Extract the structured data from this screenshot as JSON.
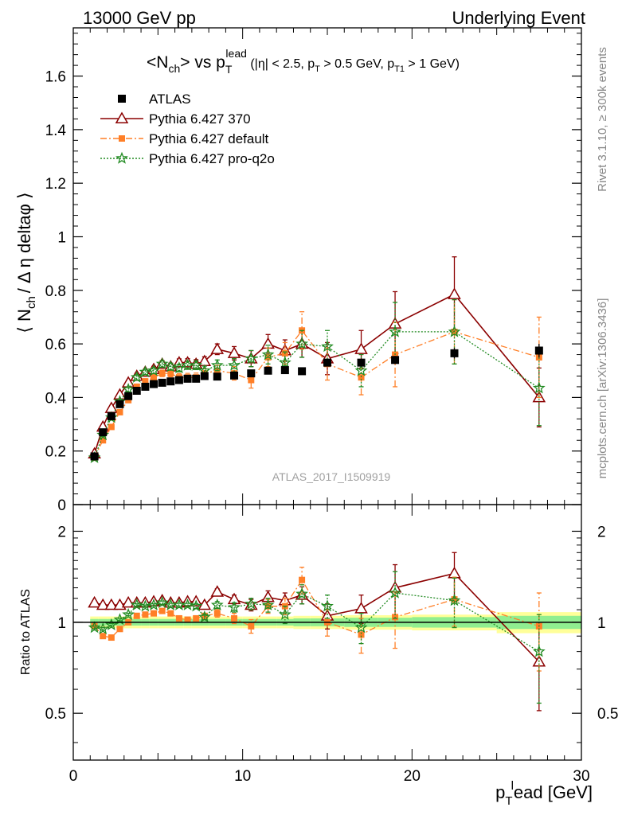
{
  "header": {
    "left": "13000 GeV pp",
    "right": "Underlying Event"
  },
  "side_labels": {
    "rivet": "Rivet 3.1.10, ≥ 300k events",
    "mcplots": "mcplots.cern.ch [arXiv:1306.3436]"
  },
  "watermark": "ATLAS_2017_I1509919",
  "chart_data": [
    {
      "type": "scatter",
      "panel": "main",
      "title": "<N_ch> vs p_T^lead (|η| < 2.5, p_T > 0.5 GeV, p_T1 > 1 GeV)",
      "title_parts": {
        "main": "<N",
        "sub1": "ch",
        "mid": "> vs p",
        "sub2": "T",
        "sup2": "lead",
        "cut_a": " (|η| < 2.5, p",
        "cut_sub_a": "T",
        "cut_b": " > 0.5 GeV, p",
        "cut_sub_b": "T1",
        "cut_c": " > 1 GeV)"
      },
      "ylabel": "⟨ N_ch / Δη deltaφ ⟩",
      "ylabel_parts": {
        "open": "⟨ N",
        "sub": "ch",
        "rest": "/ Δ η deltaφ ⟩"
      },
      "xlim": [
        0,
        30
      ],
      "ylim": [
        0,
        1.78
      ],
      "yticks": [
        0,
        0.2,
        0.4,
        0.6,
        0.8,
        1,
        1.2,
        1.4,
        1.6
      ],
      "ytick_labels": [
        "0",
        "0.2",
        "0.4",
        "0.6",
        "0.8",
        "1",
        "1.2",
        "1.4",
        "1.6"
      ],
      "legend_position": "top-left",
      "series": [
        {
          "name": "ATLAS",
          "color": "#000000",
          "marker": "square",
          "x": [
            1.25,
            1.75,
            2.25,
            2.75,
            3.25,
            3.75,
            4.25,
            4.75,
            5.25,
            5.75,
            6.25,
            6.75,
            7.25,
            7.75,
            8.5,
            9.5,
            10.5,
            11.5,
            12.5,
            13.5,
            15.0,
            17.0,
            19.0,
            22.5,
            27.5
          ],
          "y": [
            0.18,
            0.27,
            0.33,
            0.375,
            0.405,
            0.425,
            0.44,
            0.45,
            0.455,
            0.46,
            0.465,
            0.47,
            0.47,
            0.48,
            0.478,
            0.482,
            0.49,
            0.5,
            0.502,
            0.498,
            0.53,
            0.53,
            0.54,
            0.565,
            0.575
          ],
          "yerr": [
            0.005,
            0.005,
            0.005,
            0.005,
            0.005,
            0.005,
            0.005,
            0.005,
            0.005,
            0.005,
            0.005,
            0.005,
            0.005,
            0.005,
            0.005,
            0.005,
            0.006,
            0.006,
            0.007,
            0.008,
            0.01,
            0.012,
            0.015,
            0.02,
            0.025
          ]
        },
        {
          "name": "Pythia 6.427 370",
          "color": "#8b0000",
          "marker": "triangle-open",
          "line": "solid",
          "x": [
            1.25,
            1.75,
            2.25,
            2.75,
            3.25,
            3.75,
            4.25,
            4.75,
            5.25,
            5.75,
            6.25,
            6.75,
            7.25,
            7.75,
            8.5,
            9.5,
            10.5,
            11.5,
            12.5,
            13.5,
            15.0,
            17.0,
            19.0,
            22.5,
            27.5
          ],
          "y": [
            0.19,
            0.29,
            0.36,
            0.41,
            0.455,
            0.48,
            0.495,
            0.505,
            0.525,
            0.515,
            0.53,
            0.53,
            0.525,
            0.535,
            0.58,
            0.565,
            0.545,
            0.6,
            0.575,
            0.6,
            0.545,
            0.58,
            0.675,
            0.785,
            0.4
          ],
          "yerr": [
            0.005,
            0.006,
            0.007,
            0.008,
            0.009,
            0.01,
            0.01,
            0.011,
            0.012,
            0.013,
            0.014,
            0.015,
            0.016,
            0.017,
            0.02,
            0.025,
            0.03,
            0.035,
            0.04,
            0.05,
            0.06,
            0.07,
            0.12,
            0.14,
            0.11
          ]
        },
        {
          "name": "Pythia 6.427 default",
          "color": "#ff7f27",
          "marker": "square",
          "line": "dashdot",
          "x": [
            1.25,
            1.75,
            2.25,
            2.75,
            3.25,
            3.75,
            4.25,
            4.75,
            5.25,
            5.75,
            6.25,
            6.75,
            7.25,
            7.75,
            8.5,
            9.5,
            10.5,
            11.5,
            12.5,
            13.5,
            15.0,
            17.0,
            19.0,
            22.5,
            27.5
          ],
          "y": [
            0.175,
            0.24,
            0.29,
            0.345,
            0.39,
            0.44,
            0.46,
            0.475,
            0.49,
            0.49,
            0.475,
            0.475,
            0.475,
            0.49,
            0.5,
            0.49,
            0.465,
            0.55,
            0.565,
            0.65,
            0.525,
            0.475,
            0.56,
            0.645,
            0.55
          ],
          "yerr": [
            0.005,
            0.006,
            0.007,
            0.008,
            0.009,
            0.01,
            0.01,
            0.011,
            0.012,
            0.013,
            0.014,
            0.015,
            0.016,
            0.017,
            0.02,
            0.025,
            0.03,
            0.035,
            0.04,
            0.07,
            0.06,
            0.065,
            0.12,
            0.12,
            0.15
          ]
        },
        {
          "name": "Pythia 6.427 pro-q2o",
          "color": "#228b22",
          "marker": "star",
          "line": "dotted",
          "x": [
            1.25,
            1.75,
            2.25,
            2.75,
            3.25,
            3.75,
            4.25,
            4.75,
            5.25,
            5.75,
            6.25,
            6.75,
            7.25,
            7.75,
            8.5,
            9.5,
            10.5,
            11.5,
            12.5,
            13.5,
            15.0,
            17.0,
            19.0,
            22.5,
            27.5
          ],
          "y": [
            0.175,
            0.26,
            0.325,
            0.385,
            0.43,
            0.475,
            0.495,
            0.5,
            0.525,
            0.515,
            0.51,
            0.52,
            0.52,
            0.5,
            0.52,
            0.52,
            0.545,
            0.56,
            0.53,
            0.6,
            0.59,
            0.5,
            0.645,
            0.645,
            0.435
          ],
          "yerr": [
            0.005,
            0.006,
            0.007,
            0.008,
            0.009,
            0.01,
            0.01,
            0.011,
            0.012,
            0.013,
            0.014,
            0.015,
            0.016,
            0.017,
            0.02,
            0.025,
            0.03,
            0.035,
            0.04,
            0.05,
            0.06,
            0.06,
            0.11,
            0.12,
            0.14
          ]
        }
      ]
    },
    {
      "type": "scatter",
      "panel": "ratio",
      "ylabel": "Ratio to ATLAS",
      "xlabel": "p_T^lead [GeV]",
      "xlabel_parts": {
        "p": "p",
        "sub": "T",
        "sup": "l",
        "rest": "ead [GeV]"
      },
      "xlim": [
        0,
        30
      ],
      "xticks": [
        0,
        10,
        20,
        30
      ],
      "xtick_labels": [
        "0",
        "10",
        "20",
        "30"
      ],
      "ylim": [
        0.35,
        2.45
      ],
      "yticks": [
        0.5,
        1,
        2
      ],
      "ytick_labels": [
        "0.5",
        "1",
        "2"
      ],
      "yscale": "log",
      "reference_line": 1,
      "bands": {
        "edges": [
          1.0,
          1.5,
          2.0,
          2.5,
          3.0,
          3.5,
          4.0,
          4.5,
          5.0,
          5.5,
          6.0,
          6.5,
          7.0,
          7.5,
          8.0,
          9.0,
          10.0,
          11.0,
          12.0,
          13.0,
          14.0,
          16.0,
          18.0,
          20.0,
          25.0,
          30.0
        ],
        "inner": [
          0.025,
          0.025,
          0.025,
          0.025,
          0.025,
          0.025,
          0.025,
          0.025,
          0.025,
          0.025,
          0.025,
          0.025,
          0.025,
          0.025,
          0.025,
          0.025,
          0.025,
          0.025,
          0.025,
          0.03,
          0.03,
          0.035,
          0.035,
          0.04,
          0.05
        ],
        "outer": [
          0.045,
          0.045,
          0.045,
          0.045,
          0.045,
          0.045,
          0.045,
          0.045,
          0.045,
          0.045,
          0.045,
          0.045,
          0.045,
          0.045,
          0.045,
          0.045,
          0.045,
          0.045,
          0.045,
          0.05,
          0.05,
          0.055,
          0.055,
          0.06,
          0.08
        ],
        "inner_color": "#90ee90",
        "outer_color": "#ffff99"
      },
      "series": [
        {
          "name": "Pythia 6.427 370",
          "color": "#8b0000",
          "marker": "triangle-open",
          "line": "solid",
          "x": [
            1.25,
            1.75,
            2.25,
            2.75,
            3.25,
            3.75,
            4.25,
            4.75,
            5.25,
            5.75,
            6.25,
            6.75,
            7.25,
            7.75,
            8.5,
            9.5,
            10.5,
            11.5,
            12.5,
            13.5,
            15.0,
            17.0,
            19.0,
            22.5,
            27.5
          ],
          "y": [
            1.16,
            1.14,
            1.14,
            1.14,
            1.16,
            1.16,
            1.16,
            1.17,
            1.18,
            1.16,
            1.16,
            1.17,
            1.17,
            1.14,
            1.26,
            1.19,
            1.14,
            1.21,
            1.18,
            1.23,
            1.05,
            1.11,
            1.3,
            1.45,
            0.74
          ],
          "yerr": [
            0.01,
            0.01,
            0.01,
            0.01,
            0.01,
            0.01,
            0.01,
            0.01,
            0.015,
            0.015,
            0.015,
            0.015,
            0.02,
            0.02,
            0.03,
            0.04,
            0.05,
            0.06,
            0.07,
            0.08,
            0.1,
            0.12,
            0.25,
            0.25,
            0.23
          ]
        },
        {
          "name": "Pythia 6.427 default",
          "color": "#ff7f27",
          "marker": "square",
          "line": "dashdot",
          "x": [
            1.25,
            1.75,
            2.25,
            2.75,
            3.25,
            3.75,
            4.25,
            4.75,
            5.25,
            5.75,
            6.25,
            6.75,
            7.25,
            7.75,
            8.5,
            9.5,
            10.5,
            11.5,
            12.5,
            13.5,
            15.0,
            17.0,
            19.0,
            22.5,
            27.5
          ],
          "y": [
            0.97,
            0.9,
            0.89,
            0.95,
            1.0,
            1.05,
            1.06,
            1.07,
            1.09,
            1.07,
            1.03,
            1.02,
            1.03,
            1.05,
            1.07,
            1.03,
            0.97,
            1.13,
            1.13,
            1.38,
            1.0,
            0.91,
            1.04,
            1.19,
            0.97
          ],
          "yerr": [
            0.01,
            0.01,
            0.01,
            0.01,
            0.01,
            0.01,
            0.01,
            0.01,
            0.015,
            0.015,
            0.015,
            0.015,
            0.02,
            0.02,
            0.03,
            0.04,
            0.05,
            0.06,
            0.07,
            0.14,
            0.1,
            0.12,
            0.22,
            0.22,
            0.28
          ]
        },
        {
          "name": "Pythia 6.427 pro-q2o",
          "color": "#228b22",
          "marker": "star",
          "line": "dotted",
          "x": [
            1.25,
            1.75,
            2.25,
            2.75,
            3.25,
            3.75,
            4.25,
            4.75,
            5.25,
            5.75,
            6.25,
            6.75,
            7.25,
            7.75,
            8.5,
            9.5,
            10.5,
            11.5,
            12.5,
            13.5,
            15.0,
            17.0,
            19.0,
            22.5,
            27.5
          ],
          "y": [
            0.96,
            0.95,
            0.98,
            1.02,
            1.06,
            1.14,
            1.13,
            1.14,
            1.16,
            1.14,
            1.14,
            1.14,
            1.13,
            1.04,
            1.14,
            1.12,
            1.15,
            1.14,
            1.06,
            1.24,
            1.13,
            0.96,
            1.25,
            1.18,
            0.8
          ],
          "yerr": [
            0.01,
            0.01,
            0.01,
            0.01,
            0.01,
            0.01,
            0.01,
            0.01,
            0.015,
            0.015,
            0.015,
            0.015,
            0.02,
            0.02,
            0.03,
            0.04,
            0.05,
            0.06,
            0.07,
            0.09,
            0.1,
            0.11,
            0.22,
            0.22,
            0.26
          ]
        }
      ]
    }
  ]
}
